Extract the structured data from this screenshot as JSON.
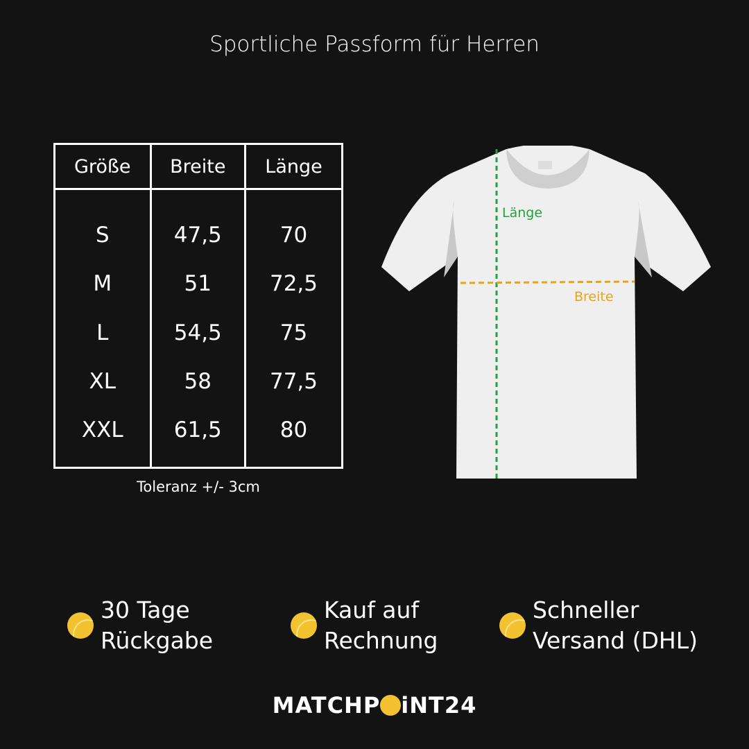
{
  "title": "Sportliche Passform für Herren",
  "table": {
    "headers": [
      "Größe",
      "Breite",
      "Länge"
    ],
    "rows": [
      [
        "S",
        "47,5",
        "70"
      ],
      [
        "M",
        "51",
        "72,5"
      ],
      [
        "L",
        "54,5",
        "75"
      ],
      [
        "XL",
        "58",
        "77,5"
      ],
      [
        "XXL",
        "61,5",
        "80"
      ]
    ]
  },
  "tolerance": "Toleranz +/- 3cm",
  "shirt": {
    "length_label": "Länge",
    "width_label": "Breite",
    "length_color": "#1fa33a",
    "width_color": "#e8a317"
  },
  "features": [
    {
      "icon": "tennis-ball-icon",
      "text": "30 Tage\nRückgabe"
    },
    {
      "icon": "tennis-ball-icon",
      "text": "Kauf auf\nRechnung"
    },
    {
      "icon": "tennis-ball-icon",
      "text": "Schneller\nVersand (DHL)"
    }
  ],
  "logo": {
    "part1": "MATCHP",
    "part2": "iNT24"
  }
}
